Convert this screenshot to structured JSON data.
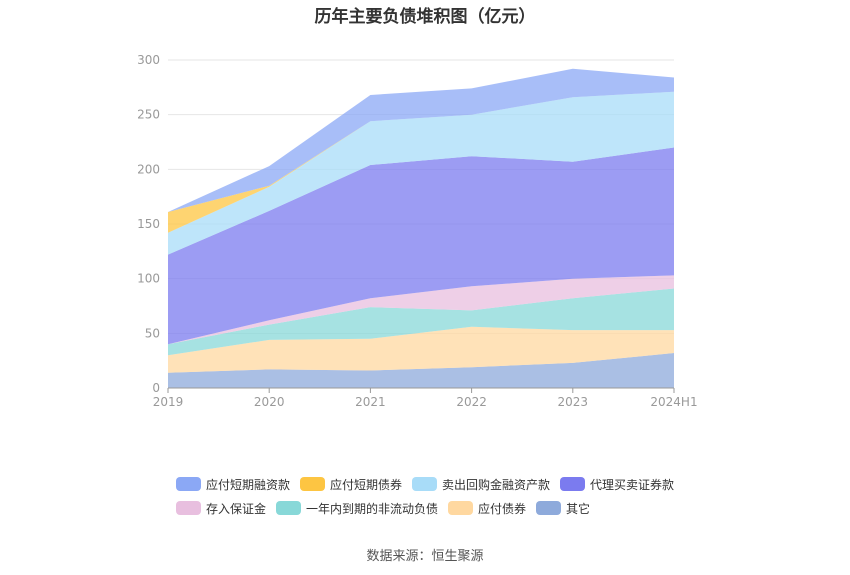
{
  "chart_data": {
    "type": "area",
    "stacked": true,
    "title": "历年主要负债堆积图（亿元）",
    "categories": [
      "2019",
      "2020",
      "2021",
      "2022",
      "2023",
      "2024H1"
    ],
    "ylim": [
      0,
      300
    ],
    "yticks": [
      0,
      50,
      100,
      150,
      200,
      250,
      300
    ],
    "grid": true,
    "legend_position": "bottom",
    "series": [
      {
        "name": "其它",
        "color": "#8eaadb",
        "values": [
          14,
          17,
          16,
          19,
          23,
          32
        ]
      },
      {
        "name": "应付债券",
        "color": "#ffd8a0",
        "values": [
          16,
          27,
          29,
          37,
          30,
          21
        ]
      },
      {
        "name": "一年内到期的非流动负债",
        "color": "#88d8d8",
        "values": [
          10,
          14,
          29,
          15,
          29,
          38
        ]
      },
      {
        "name": "存入保证金",
        "color": "#e8bfdf",
        "values": [
          0,
          4,
          8,
          22,
          18,
          12
        ]
      },
      {
        "name": "代理买卖证券款",
        "color": "#7b7bef",
        "values": [
          82,
          100,
          122,
          119,
          107,
          117
        ]
      },
      {
        "name": "卖出回购金融资产款",
        "color": "#a8dcf8",
        "values": [
          20,
          22,
          40,
          38,
          59,
          51
        ]
      },
      {
        "name": "应付短期债券",
        "color": "#fdc542",
        "values": [
          19,
          1,
          0,
          0,
          0,
          0
        ]
      },
      {
        "name": "应付短期融资款",
        "color": "#8ba8f5",
        "values": [
          0,
          18,
          24,
          24,
          26,
          13
        ]
      }
    ],
    "legend_order": [
      "应付短期融资款",
      "应付短期债券",
      "卖出回购金融资产款",
      "代理买卖证券款",
      "存入保证金",
      "一年内到期的非流动负债",
      "应付债券",
      "其它"
    ]
  },
  "source": "数据来源：恒生聚源"
}
